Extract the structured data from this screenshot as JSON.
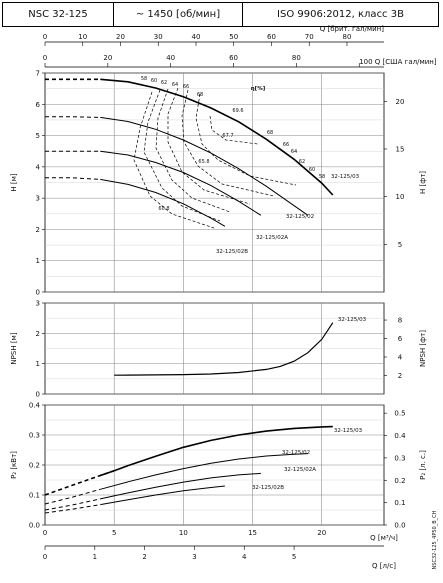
{
  "header": {
    "model": "NSC 32-125",
    "speed": "~ 1450 [об/мин]",
    "standard": "ISO 9906:2012, класс 3В"
  },
  "footer_code": "NSC32-125_4P50_B_CH",
  "chart_data": [
    {
      "id": "head",
      "type": "line",
      "title": "",
      "x_top_label": "Q [брит. гал/мин]",
      "x_top_ticks": [
        0,
        10,
        20,
        30,
        40,
        50,
        60,
        70,
        80
      ],
      "x_top2_label": "Q [США гал/мин]",
      "x_top2_ticks": [
        0,
        20,
        40,
        60,
        80,
        100
      ],
      "ylabel": "H [м]",
      "ylabel_right": "H [фт]",
      "ylim": [
        0,
        7
      ],
      "yticks": [
        0,
        1,
        2,
        3,
        4,
        5,
        6,
        7
      ],
      "yticks_right": [
        5,
        10,
        15,
        20
      ],
      "efficiency_label": "η[%]",
      "series": [
        {
          "name": "32-125/03",
          "x": [
            0,
            2,
            4,
            6,
            8,
            10,
            12,
            14,
            16,
            18,
            20,
            20.8
          ],
          "y": [
            6.8,
            6.8,
            6.8,
            6.72,
            6.52,
            6.24,
            5.88,
            5.44,
            4.88,
            4.24,
            3.48,
            3.1
          ]
        },
        {
          "name": "32-125/02",
          "x": [
            0,
            2,
            4,
            6,
            8,
            10,
            12,
            14,
            16,
            18,
            19
          ],
          "y": [
            5.6,
            5.6,
            5.58,
            5.45,
            5.2,
            4.86,
            4.44,
            3.94,
            3.38,
            2.76,
            2.45
          ]
        },
        {
          "name": "32-125/02A",
          "x": [
            0,
            2,
            4,
            6,
            8,
            10,
            12,
            14,
            15.6
          ],
          "y": [
            4.5,
            4.5,
            4.5,
            4.38,
            4.14,
            3.82,
            3.4,
            2.9,
            2.45
          ]
        },
        {
          "name": "32-125/02B",
          "x": [
            0,
            2,
            4,
            6,
            8,
            10,
            12,
            13
          ],
          "y": [
            3.65,
            3.65,
            3.6,
            3.44,
            3.18,
            2.82,
            2.36,
            2.1
          ]
        }
      ],
      "efficiency_labels": [
        "58",
        "60",
        "62",
        "64",
        "66",
        "68",
        "69.6",
        "67.7",
        "65.8",
        "60.8",
        "68",
        "66",
        "64",
        "62",
        "60",
        "58"
      ]
    },
    {
      "id": "npsh",
      "type": "line",
      "ylabel": "NPSH [м]",
      "ylabel_right": "NPSH [фт]",
      "ylim": [
        0,
        3
      ],
      "yticks": [
        0,
        1,
        2,
        3
      ],
      "yticks_right": [
        2,
        4,
        6,
        8
      ],
      "series": [
        {
          "name": "32-125/03",
          "x": [
            5,
            8,
            10,
            12,
            14,
            16,
            17,
            18,
            19,
            20,
            20.8
          ],
          "y": [
            0.62,
            0.63,
            0.64,
            0.66,
            0.71,
            0.81,
            0.91,
            1.08,
            1.36,
            1.8,
            2.35
          ]
        }
      ]
    },
    {
      "id": "power",
      "type": "line",
      "ylabel": "P₂ [кВт]",
      "ylabel_right": "P₂ [л. с.]",
      "ylim": [
        0,
        0.4
      ],
      "yticks": [
        0.0,
        0.1,
        0.2,
        0.3,
        0.4
      ],
      "yticks_right": [
        0.0,
        0.1,
        0.2,
        0.3,
        0.4,
        0.5
      ],
      "x_bottom_label": "Q [м³/ч]",
      "x_bottom_ticks": [
        0,
        5,
        10,
        15,
        20
      ],
      "x_bottom2_label": "Q [л/с]",
      "x_bottom2_ticks": [
        0,
        1,
        2,
        3,
        4,
        5
      ],
      "series": [
        {
          "name": "32-125/03",
          "x": [
            0,
            2,
            4,
            5,
            6,
            8,
            10,
            12,
            14,
            16,
            18,
            20,
            20.8
          ],
          "y": [
            0.1,
            0.133,
            0.165,
            0.181,
            0.198,
            0.229,
            0.259,
            0.282,
            0.3,
            0.313,
            0.322,
            0.327,
            0.328
          ]
        },
        {
          "name": "32-125/02",
          "x": [
            0,
            2,
            4,
            6,
            8,
            10,
            12,
            14,
            16,
            18,
            19
          ],
          "y": [
            0.07,
            0.093,
            0.119,
            0.144,
            0.167,
            0.188,
            0.206,
            0.22,
            0.23,
            0.236,
            0.238
          ]
        },
        {
          "name": "32-125/02A",
          "x": [
            0,
            2,
            4,
            6,
            8,
            10,
            12,
            14,
            15.6
          ],
          "y": [
            0.05,
            0.067,
            0.087,
            0.107,
            0.126,
            0.143,
            0.157,
            0.167,
            0.172
          ]
        },
        {
          "name": "32-125/02B",
          "x": [
            0,
            2,
            4,
            6,
            8,
            10,
            12,
            13
          ],
          "y": [
            0.04,
            0.053,
            0.068,
            0.084,
            0.1,
            0.114,
            0.125,
            0.13
          ]
        }
      ]
    }
  ]
}
